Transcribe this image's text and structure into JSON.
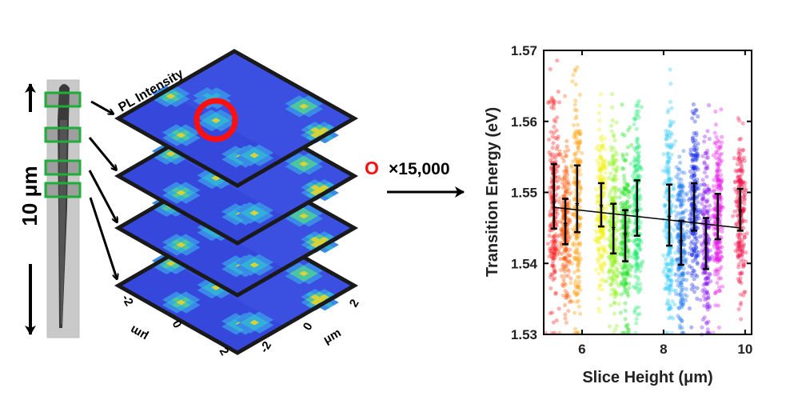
{
  "schematic": {
    "scale_label": "10 μm",
    "layer_label": "PL Intensity",
    "multiplier_symbol": "O",
    "multiplier_text": "×15,000",
    "axis_ticks_left": [
      "-2",
      "0",
      "2"
    ],
    "axis_ticks_right": [
      "-2",
      "0",
      "2"
    ],
    "axis_unit_left": "μm",
    "axis_unit_right": "μm",
    "colors": {
      "marker_ring": "#ff1010",
      "slice_box": "#1fae3a",
      "map_base": "#3b4fe0"
    }
  },
  "chart_data": {
    "type": "scatter",
    "xlabel": "Slice Height (μm)",
    "ylabel": "Transition Energy (eV)",
    "xlim": [
      5.06,
      10.16
    ],
    "ylim": [
      1.53,
      1.57
    ],
    "xticks": [
      "6",
      "8",
      "10"
    ],
    "yticks": [
      "1.53",
      "1.54",
      "1.55",
      "1.56",
      "1.57"
    ],
    "grid": false,
    "series": [
      {
        "x": 5.31,
        "mean": 1.5484,
        "err_low": 1.5449,
        "err_high": 1.554,
        "color": "#ff1a1a"
      },
      {
        "x": 5.59,
        "mean": 1.5454,
        "err_low": 1.5427,
        "err_high": 1.5491,
        "color": "#ff5a0a"
      },
      {
        "x": 5.88,
        "mean": 1.5482,
        "err_low": 1.5444,
        "err_high": 1.5538,
        "color": "#ff9d0a"
      },
      {
        "x": 6.47,
        "mean": 1.548,
        "err_low": 1.5452,
        "err_high": 1.5513,
        "color": "#f0f010"
      },
      {
        "x": 6.77,
        "mean": 1.5448,
        "err_low": 1.5414,
        "err_high": 1.5484,
        "color": "#8cf010"
      },
      {
        "x": 7.06,
        "mean": 1.544,
        "err_low": 1.5403,
        "err_high": 1.5475,
        "color": "#1ee01e"
      },
      {
        "x": 7.35,
        "mean": 1.5473,
        "err_low": 1.5439,
        "err_high": 1.5517,
        "color": "#1ee870"
      },
      {
        "x": 8.14,
        "mean": 1.5464,
        "err_low": 1.5425,
        "err_high": 1.5511,
        "color": "#2ec8f5"
      },
      {
        "x": 8.43,
        "mean": 1.543,
        "err_low": 1.5398,
        "err_high": 1.546,
        "color": "#1e78f0"
      },
      {
        "x": 8.75,
        "mean": 1.5475,
        "err_low": 1.5446,
        "err_high": 1.5513,
        "color": "#1428e6"
      },
      {
        "x": 9.04,
        "mean": 1.5427,
        "err_low": 1.5392,
        "err_high": 1.5464,
        "color": "#8a14f0"
      },
      {
        "x": 9.33,
        "mean": 1.5461,
        "err_low": 1.5434,
        "err_high": 1.5498,
        "color": "#e614e6"
      },
      {
        "x": 9.88,
        "mean": 1.5473,
        "err_low": 1.5446,
        "err_high": 1.5505,
        "color": "#f0144a"
      }
    ],
    "fit_line": {
      "x": [
        5.31,
        9.88
      ],
      "y": [
        1.5479,
        1.545
      ],
      "color": "#000000"
    }
  }
}
